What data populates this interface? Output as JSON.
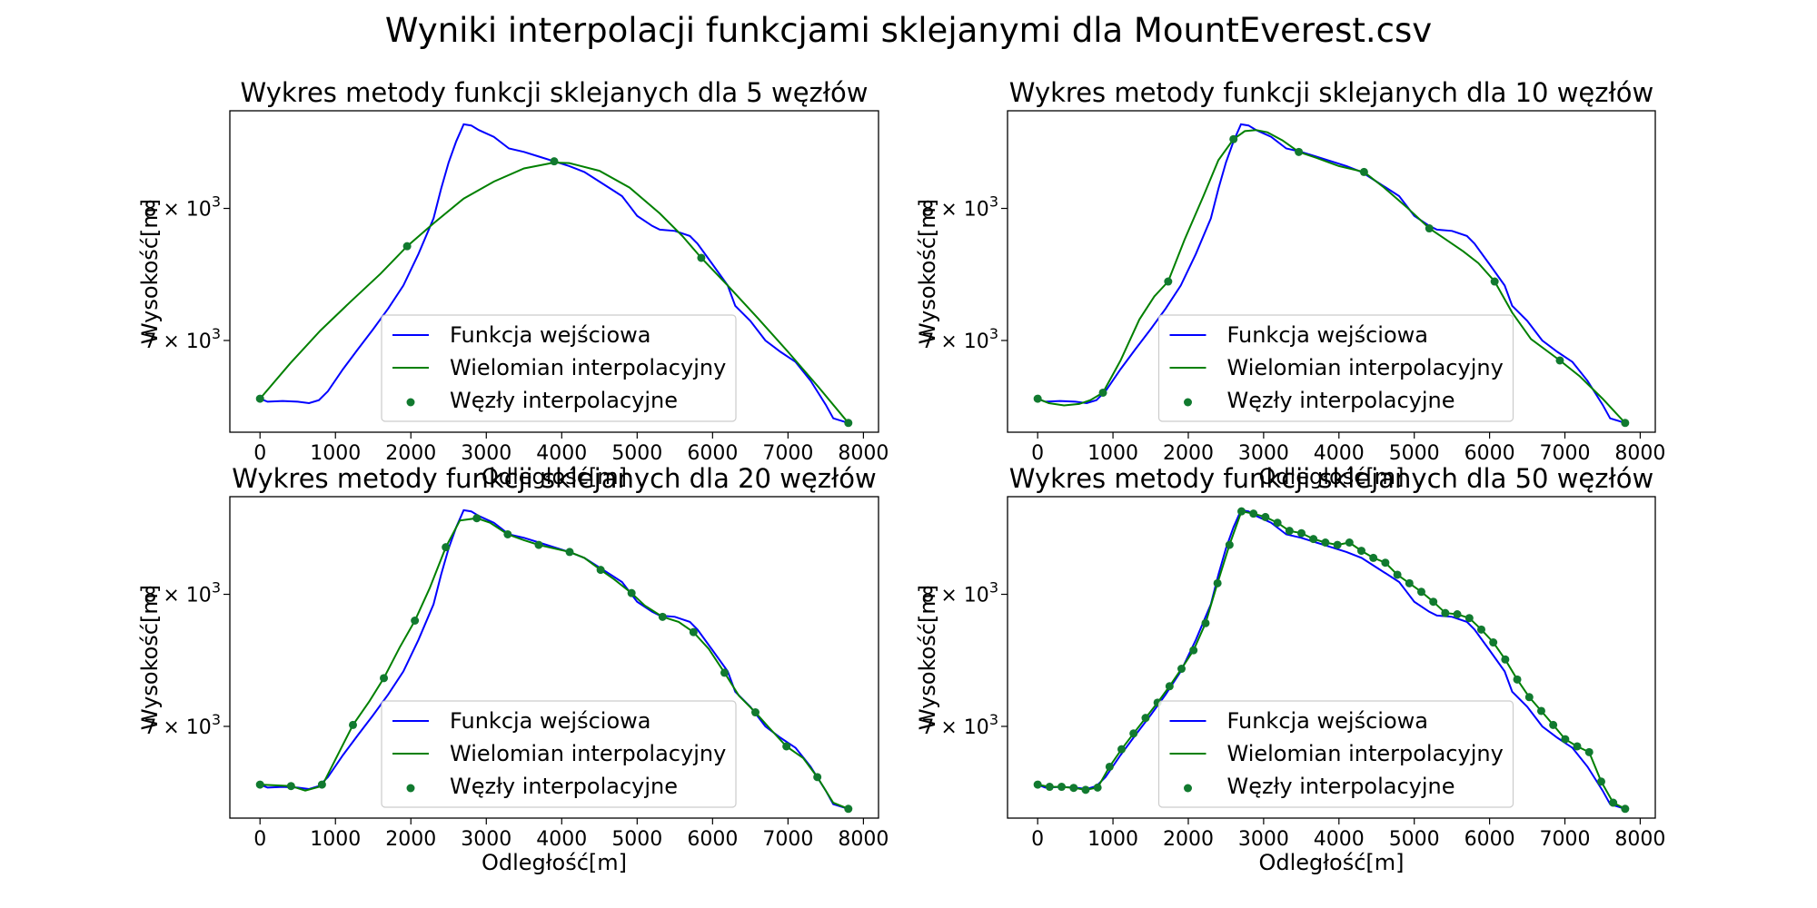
{
  "figure": {
    "suptitle": "Wyniki interpolacji funkcjami sklejanymi dla MountEverest.csv"
  },
  "colors": {
    "input": "#0000ff",
    "interp": "#008000",
    "nodes": "#117a2f"
  },
  "legend": {
    "input": "Funkcja wejściowa",
    "interp": "Wielomian interpolacyjny",
    "nodes": "Węzły interpolacyjne"
  },
  "chart_data": [
    {
      "type": "line",
      "title": "Wykres metody funkcji sklejanych dla 5 węzłów",
      "xlabel": "Odległość[m]",
      "ylabel": "Wysokość[m]",
      "yscale": "log",
      "xlim": [
        -400,
        8200
      ],
      "ylim": [
        6380,
        8830
      ],
      "xticks": [
        0,
        1000,
        2000,
        3000,
        4000,
        5000,
        6000,
        7000,
        8000
      ],
      "yticks": [
        {
          "value": 7000,
          "mantissa": "7",
          "exponent": "3"
        },
        {
          "value": 8000,
          "mantissa": "8",
          "exponent": "3"
        }
      ],
      "legend_position": "lower center",
      "input_function": {
        "x": [
          0,
          100,
          300,
          500,
          650,
          780,
          900,
          1100,
          1300,
          1500,
          1700,
          1900,
          2100,
          2300,
          2400,
          2500,
          2600,
          2700,
          2800,
          2900,
          3100,
          3300,
          3500,
          3700,
          3900,
          4100,
          4300,
          4500,
          4700,
          4800,
          4900,
          5000,
          5200,
          5300,
          5500,
          5700,
          5800,
          6000,
          6200,
          6300,
          6500,
          6700,
          6900,
          7100,
          7300,
          7500,
          7600,
          7800
        ],
        "y": [
          6600,
          6580,
          6585,
          6580,
          6570,
          6590,
          6650,
          6800,
          6940,
          7080,
          7230,
          7400,
          7640,
          7920,
          8160,
          8380,
          8560,
          8710,
          8700,
          8660,
          8600,
          8500,
          8470,
          8430,
          8390,
          8350,
          8300,
          8220,
          8140,
          8100,
          8020,
          7940,
          7860,
          7830,
          7820,
          7780,
          7720,
          7560,
          7400,
          7250,
          7140,
          7000,
          6920,
          6850,
          6720,
          6560,
          6470,
          6440
        ]
      },
      "spline": {
        "x": [
          0,
          400,
          800,
          1200,
          1600,
          1950,
          2300,
          2700,
          3100,
          3500,
          3900,
          4100,
          4500,
          4900,
          5300,
          5600,
          5850,
          6200,
          6600,
          7000,
          7400,
          7800
        ],
        "y": [
          6600,
          6840,
          7070,
          7280,
          7490,
          7700,
          7880,
          8080,
          8220,
          8330,
          8380,
          8375,
          8310,
          8170,
          7960,
          7780,
          7610,
          7400,
          7160,
          6920,
          6680,
          6440
        ]
      },
      "nodes": {
        "x": [
          0,
          1950,
          3900,
          5850,
          7800
        ],
        "y": [
          6600,
          7700,
          8390,
          7610,
          6440
        ]
      }
    },
    {
      "type": "line",
      "title": "Wykres metody funkcji sklejanych dla 10 węzłów",
      "xlabel": "Odległość[m]",
      "ylabel": "Wysokość[m]",
      "yscale": "log",
      "xlim": [
        -400,
        8200
      ],
      "ylim": [
        6380,
        8830
      ],
      "xticks": [
        0,
        1000,
        2000,
        3000,
        4000,
        5000,
        6000,
        7000,
        8000
      ],
      "yticks": [
        {
          "value": 7000,
          "mantissa": "7",
          "exponent": "3"
        },
        {
          "value": 8000,
          "mantissa": "8",
          "exponent": "3"
        }
      ],
      "legend_position": "lower center",
      "input_function": {
        "x": [
          0,
          100,
          300,
          500,
          650,
          780,
          900,
          1100,
          1300,
          1500,
          1700,
          1900,
          2100,
          2300,
          2400,
          2500,
          2600,
          2700,
          2800,
          2900,
          3100,
          3300,
          3500,
          3700,
          3900,
          4100,
          4300,
          4500,
          4700,
          4800,
          4900,
          5000,
          5200,
          5300,
          5500,
          5700,
          5800,
          6000,
          6200,
          6300,
          6500,
          6700,
          6900,
          7100,
          7300,
          7500,
          7600,
          7800
        ],
        "y": [
          6600,
          6580,
          6585,
          6580,
          6570,
          6590,
          6650,
          6800,
          6940,
          7080,
          7230,
          7400,
          7640,
          7920,
          8160,
          8380,
          8560,
          8710,
          8700,
          8660,
          8600,
          8500,
          8470,
          8430,
          8390,
          8350,
          8300,
          8220,
          8140,
          8100,
          8020,
          7940,
          7860,
          7830,
          7820,
          7780,
          7720,
          7560,
          7400,
          7250,
          7140,
          7000,
          6920,
          6850,
          6720,
          6560,
          6470,
          6440
        ]
      },
      "spline": {
        "x": [
          0,
          150,
          350,
          550,
          700,
          867,
          1100,
          1350,
          1550,
          1733,
          1950,
          2200,
          2400,
          2600,
          2750,
          2900,
          3050,
          3250,
          3467,
          3700,
          4000,
          4333,
          4600,
          4900,
          5200,
          5400,
          5650,
          5850,
          6067,
          6300,
          6550,
          6933,
          7200,
          7500,
          7800
        ],
        "y": [
          6600,
          6570,
          6555,
          6565,
          6590,
          6640,
          6860,
          7150,
          7320,
          7430,
          7750,
          8100,
          8400,
          8580,
          8650,
          8660,
          8640,
          8570,
          8470,
          8420,
          8350,
          8300,
          8170,
          8010,
          7840,
          7760,
          7660,
          7570,
          7430,
          7200,
          7010,
          6860,
          6750,
          6600,
          6440
        ]
      },
      "nodes": {
        "x": [
          0,
          867,
          1733,
          2600,
          3467,
          4333,
          5200,
          6067,
          6933,
          7800
        ],
        "y": [
          6600,
          6640,
          7430,
          8580,
          8470,
          8300,
          7840,
          7430,
          6860,
          6440
        ]
      }
    },
    {
      "type": "line",
      "title": "Wykres metody funkcji sklejanych dla 20 węzłów",
      "xlabel": "Odległość[m]",
      "ylabel": "Wysokość[m]",
      "yscale": "log",
      "xlim": [
        -400,
        8200
      ],
      "ylim": [
        6380,
        8830
      ],
      "xticks": [
        0,
        1000,
        2000,
        3000,
        4000,
        5000,
        6000,
        7000,
        8000
      ],
      "yticks": [
        {
          "value": 7000,
          "mantissa": "7",
          "exponent": "3"
        },
        {
          "value": 8000,
          "mantissa": "8",
          "exponent": "3"
        }
      ],
      "legend_position": "lower center",
      "input_function": {
        "x": [
          0,
          100,
          300,
          500,
          650,
          780,
          900,
          1100,
          1300,
          1500,
          1700,
          1900,
          2100,
          2300,
          2400,
          2500,
          2600,
          2700,
          2800,
          2900,
          3100,
          3300,
          3500,
          3700,
          3900,
          4100,
          4300,
          4500,
          4700,
          4800,
          4900,
          5000,
          5200,
          5300,
          5500,
          5700,
          5800,
          6000,
          6200,
          6300,
          6500,
          6700,
          6900,
          7100,
          7300,
          7500,
          7600,
          7800
        ],
        "y": [
          6600,
          6580,
          6585,
          6580,
          6570,
          6590,
          6650,
          6800,
          6940,
          7080,
          7230,
          7400,
          7640,
          7920,
          8160,
          8380,
          8560,
          8710,
          8700,
          8660,
          8600,
          8500,
          8470,
          8430,
          8390,
          8350,
          8300,
          8220,
          8140,
          8100,
          8020,
          7940,
          7860,
          7830,
          7820,
          7780,
          7720,
          7560,
          7400,
          7250,
          7140,
          7000,
          6920,
          6850,
          6720,
          6560,
          6470,
          6440
        ]
      },
      "spline": {
        "x": [
          0,
          200,
          411,
          600,
          821,
          1000,
          1232,
          1450,
          1642,
          1850,
          2053,
          2250,
          2463,
          2650,
          2874,
          3050,
          3284,
          3500,
          3695,
          3900,
          4105,
          4300,
          4516,
          4700,
          4926,
          5100,
          5337,
          5550,
          5747,
          5950,
          6158,
          6350,
          6568,
          6750,
          6979,
          7200,
          7389,
          7600,
          7800
        ],
        "y": [
          6600,
          6595,
          6590,
          6560,
          6590,
          6770,
          7010,
          7180,
          7350,
          7580,
          7790,
          8050,
          8390,
          8620,
          8640,
          8600,
          8500,
          8450,
          8410,
          8380,
          8350,
          8300,
          8200,
          8120,
          8010,
          7910,
          7820,
          7780,
          7700,
          7570,
          7390,
          7220,
          7100,
          6990,
          6860,
          6780,
          6650,
          6480,
          6440
        ]
      },
      "nodes": {
        "x": [
          0,
          411,
          821,
          1232,
          1642,
          2053,
          2463,
          2874,
          3284,
          3695,
          4105,
          4516,
          4926,
          5337,
          5747,
          6158,
          6568,
          6979,
          7389,
          7800
        ],
        "y": [
          6600,
          6590,
          6600,
          7010,
          7350,
          7790,
          8390,
          8640,
          8500,
          8410,
          8350,
          8200,
          8010,
          7820,
          7700,
          7390,
          7100,
          6860,
          6650,
          6440
        ]
      }
    },
    {
      "type": "line",
      "title": "Wykres metody funkcji sklejanych dla 50 węzłów",
      "xlabel": "Odległość[m]",
      "ylabel": "Wysokość[m]",
      "yscale": "log",
      "xlim": [
        -400,
        8200
      ],
      "ylim": [
        6380,
        8830
      ],
      "xticks": [
        0,
        1000,
        2000,
        3000,
        4000,
        5000,
        6000,
        7000,
        8000
      ],
      "yticks": [
        {
          "value": 7000,
          "mantissa": "7",
          "exponent": "3"
        },
        {
          "value": 8000,
          "mantissa": "8",
          "exponent": "3"
        }
      ],
      "legend_position": "lower center",
      "input_function": {
        "x": [
          0,
          100,
          300,
          500,
          650,
          780,
          900,
          1100,
          1300,
          1500,
          1700,
          1900,
          2100,
          2300,
          2400,
          2500,
          2600,
          2700,
          2800,
          2900,
          3100,
          3300,
          3500,
          3700,
          3900,
          4100,
          4300,
          4500,
          4700,
          4800,
          4900,
          5000,
          5200,
          5300,
          5500,
          5700,
          5800,
          6000,
          6200,
          6300,
          6500,
          6700,
          6900,
          7100,
          7300,
          7500,
          7600,
          7800
        ],
        "y": [
          6600,
          6580,
          6585,
          6580,
          6570,
          6590,
          6650,
          6800,
          6940,
          7080,
          7230,
          7400,
          7640,
          7920,
          8160,
          8380,
          8560,
          8710,
          8700,
          8660,
          8600,
          8500,
          8470,
          8430,
          8390,
          8350,
          8300,
          8220,
          8140,
          8100,
          8020,
          7940,
          7860,
          7830,
          7820,
          7780,
          7720,
          7560,
          7400,
          7250,
          7140,
          7000,
          6920,
          6850,
          6720,
          6560,
          6470,
          6440
        ]
      },
      "spline": {
        "x": [
          0,
          159,
          318,
          478,
          637,
          796,
          955,
          1114,
          1273,
          1433,
          1592,
          1751,
          1910,
          2069,
          2229,
          2388,
          2547,
          2706,
          2865,
          3024,
          3184,
          3343,
          3502,
          3661,
          3820,
          3980,
          4139,
          4298,
          4457,
          4616,
          4776,
          4935,
          5094,
          5253,
          5412,
          5571,
          5731,
          5890,
          6049,
          6208,
          6367,
          6527,
          6686,
          6845,
          7004,
          7163,
          7322,
          7482,
          7641,
          7800
        ],
        "y": [
          6600,
          6585,
          6585,
          6578,
          6565,
          6580,
          6720,
          6840,
          6950,
          7060,
          7170,
          7290,
          7420,
          7560,
          7770,
          8090,
          8410,
          8700,
          8680,
          8650,
          8600,
          8530,
          8510,
          8460,
          8430,
          8410,
          8430,
          8360,
          8300,
          8260,
          8160,
          8090,
          8020,
          7940,
          7850,
          7840,
          7810,
          7720,
          7620,
          7490,
          7340,
          7210,
          7110,
          7010,
          6910,
          6860,
          6820,
          6620,
          6480,
          6440
        ]
      },
      "nodes": {
        "x": [
          0,
          159,
          318,
          478,
          637,
          796,
          955,
          1114,
          1273,
          1433,
          1592,
          1751,
          1910,
          2069,
          2229,
          2388,
          2547,
          2706,
          2865,
          3024,
          3184,
          3343,
          3502,
          3661,
          3820,
          3980,
          4139,
          4298,
          4457,
          4616,
          4776,
          4935,
          5094,
          5253,
          5412,
          5571,
          5731,
          5890,
          6049,
          6208,
          6367,
          6527,
          6686,
          6845,
          7004,
          7163,
          7322,
          7482,
          7641,
          7800
        ],
        "y": [
          6600,
          6585,
          6585,
          6578,
          6565,
          6580,
          6720,
          6840,
          6950,
          7060,
          7170,
          7290,
          7420,
          7560,
          7770,
          8090,
          8410,
          8700,
          8680,
          8650,
          8600,
          8530,
          8510,
          8460,
          8430,
          8410,
          8430,
          8360,
          8300,
          8260,
          8160,
          8090,
          8020,
          7940,
          7850,
          7840,
          7810,
          7720,
          7620,
          7490,
          7340,
          7210,
          7110,
          7010,
          6910,
          6860,
          6820,
          6620,
          6480,
          6440
        ]
      }
    }
  ]
}
